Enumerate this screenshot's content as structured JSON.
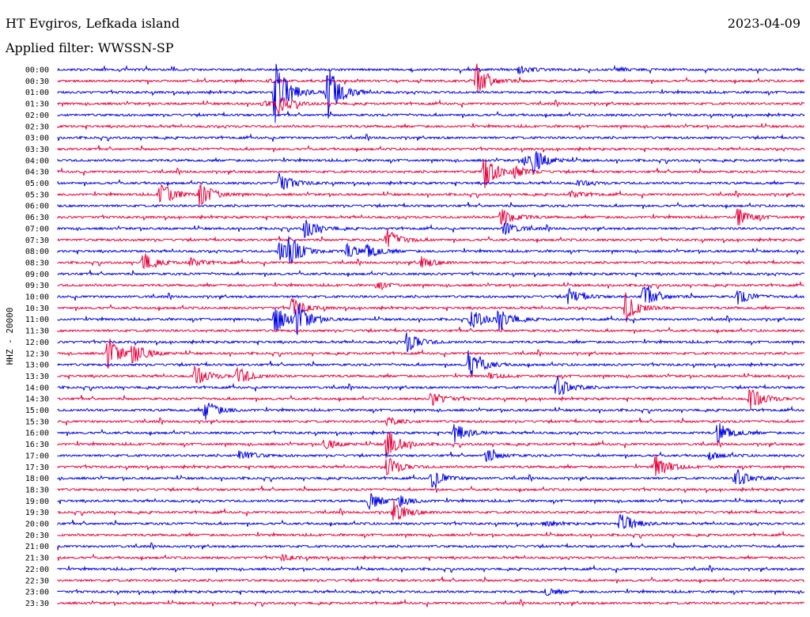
{
  "header": {
    "station": "HT Evgiros, Lefkada island",
    "filter": "Applied filter: WWSSN-SP",
    "date": "2023-04-09"
  },
  "chart_data": {
    "type": "line",
    "title": "HT Evgiros, Lefkada island",
    "subtitle": "Applied filter: WWSSN-SP",
    "ylabel": "HHZ - 20000",
    "row_labels": [
      "00:00",
      "00:30",
      "01:00",
      "01:30",
      "02:00",
      "02:30",
      "03:00",
      "03:30",
      "04:00",
      "04:30",
      "05:00",
      "05:30",
      "06:00",
      "06:30",
      "07:00",
      "07:30",
      "08:00",
      "08:30",
      "09:00",
      "09:30",
      "10:00",
      "10:30",
      "11:00",
      "11:30",
      "12:00",
      "12:30",
      "13:00",
      "13:30",
      "14:00",
      "14:30",
      "15:00",
      "15:30",
      "16:00",
      "16:30",
      "17:00",
      "17:30",
      "18:00",
      "18:30",
      "19:00",
      "19:30",
      "20:00",
      "20:30",
      "21:00",
      "21:30",
      "22:00",
      "22:30",
      "23:00",
      "23:30"
    ],
    "row_minutes": 30,
    "colors": [
      "#0000e6",
      "#e8003c"
    ],
    "events": [
      {
        "row": 0,
        "min": 18.5,
        "amp": 0.5
      },
      {
        "row": 0,
        "min": 22.5,
        "amp": 0.2
      },
      {
        "row": 1,
        "min": 16.8,
        "amp": 1.8
      },
      {
        "row": 1,
        "min": 8.5,
        "amp": 0.15
      },
      {
        "row": 2,
        "min": 8.7,
        "amp": 4.0
      },
      {
        "row": 2,
        "min": 10.8,
        "amp": 3.4
      },
      {
        "row": 3,
        "min": 8.8,
        "amp": 1.2
      },
      {
        "row": 3,
        "min": 8.2,
        "amp": 0.3
      },
      {
        "row": 8,
        "min": 19.1,
        "amp": 1.2
      },
      {
        "row": 8,
        "min": 18.7,
        "amp": 0.6
      },
      {
        "row": 9,
        "min": 17.1,
        "amp": 2.2
      },
      {
        "row": 9,
        "min": 18.3,
        "amp": 0.6
      },
      {
        "row": 10,
        "min": 8.9,
        "amp": 1.1
      },
      {
        "row": 10,
        "min": 20.9,
        "amp": 0.3
      },
      {
        "row": 11,
        "min": 4.1,
        "amp": 1.6
      },
      {
        "row": 11,
        "min": 5.7,
        "amp": 1.4
      },
      {
        "row": 11,
        "min": 20.6,
        "amp": 0.4
      },
      {
        "row": 13,
        "min": 17.8,
        "amp": 1.2
      },
      {
        "row": 13,
        "min": 27.3,
        "amp": 1.1
      },
      {
        "row": 14,
        "min": 9.9,
        "amp": 1.2
      },
      {
        "row": 14,
        "min": 17.9,
        "amp": 0.8
      },
      {
        "row": 15,
        "min": 13.2,
        "amp": 1.3
      },
      {
        "row": 16,
        "min": 8.9,
        "amp": 1.4
      },
      {
        "row": 16,
        "min": 9.3,
        "amp": 1.4
      },
      {
        "row": 16,
        "min": 11.6,
        "amp": 0.8
      },
      {
        "row": 16,
        "min": 12.4,
        "amp": 0.8
      },
      {
        "row": 17,
        "min": 3.4,
        "amp": 1.2
      },
      {
        "row": 17,
        "min": 5.3,
        "amp": 0.5
      },
      {
        "row": 17,
        "min": 14.6,
        "amp": 0.7
      },
      {
        "row": 19,
        "min": 12.8,
        "amp": 0.4
      },
      {
        "row": 20,
        "min": 20.5,
        "amp": 1.0
      },
      {
        "row": 20,
        "min": 23.5,
        "amp": 1.4
      },
      {
        "row": 20,
        "min": 27.3,
        "amp": 0.9
      },
      {
        "row": 21,
        "min": 22.8,
        "amp": 1.8
      },
      {
        "row": 21,
        "min": 9.4,
        "amp": 1.1
      },
      {
        "row": 22,
        "min": 8.7,
        "amp": 1.7
      },
      {
        "row": 22,
        "min": 9.6,
        "amp": 1.6
      },
      {
        "row": 22,
        "min": 16.6,
        "amp": 1.2
      },
      {
        "row": 22,
        "min": 17.7,
        "amp": 1.3
      },
      {
        "row": 24,
        "min": 14.0,
        "amp": 1.2
      },
      {
        "row": 25,
        "min": 2.0,
        "amp": 1.8
      },
      {
        "row": 25,
        "min": 3.0,
        "amp": 1.2
      },
      {
        "row": 26,
        "min": 16.5,
        "amp": 1.8
      },
      {
        "row": 27,
        "min": 5.5,
        "amp": 1.2
      },
      {
        "row": 27,
        "min": 7.2,
        "amp": 1.1
      },
      {
        "row": 27,
        "min": 17.3,
        "amp": 0.3
      },
      {
        "row": 28,
        "min": 20.0,
        "amp": 1.4
      },
      {
        "row": 29,
        "min": 15.0,
        "amp": 0.8
      },
      {
        "row": 29,
        "min": 27.8,
        "amp": 1.4
      },
      {
        "row": 30,
        "min": 5.9,
        "amp": 1.2
      },
      {
        "row": 31,
        "min": 13.2,
        "amp": 0.5
      },
      {
        "row": 32,
        "min": 15.9,
        "amp": 1.2
      },
      {
        "row": 32,
        "min": 26.5,
        "amp": 1.3
      },
      {
        "row": 33,
        "min": 13.2,
        "amp": 1.8
      },
      {
        "row": 33,
        "min": 10.7,
        "amp": 0.6
      },
      {
        "row": 34,
        "min": 7.3,
        "amp": 0.7
      },
      {
        "row": 34,
        "min": 17.2,
        "amp": 0.7
      },
      {
        "row": 34,
        "min": 26.2,
        "amp": 0.4
      },
      {
        "row": 35,
        "min": 24.0,
        "amp": 1.4
      },
      {
        "row": 35,
        "min": 13.2,
        "amp": 1.2
      },
      {
        "row": 36,
        "min": 15.0,
        "amp": 1.1
      },
      {
        "row": 36,
        "min": 27.2,
        "amp": 1.2
      },
      {
        "row": 38,
        "min": 12.5,
        "amp": 1.0
      },
      {
        "row": 38,
        "min": 13.7,
        "amp": 0.6
      },
      {
        "row": 39,
        "min": 13.5,
        "amp": 1.4
      },
      {
        "row": 40,
        "min": 22.6,
        "amp": 1.3
      },
      {
        "row": 40,
        "min": 19.5,
        "amp": 0.3
      },
      {
        "row": 43,
        "min": 9.0,
        "amp": 0.3
      },
      {
        "row": 46,
        "min": 19.6,
        "amp": 0.4
      }
    ]
  }
}
